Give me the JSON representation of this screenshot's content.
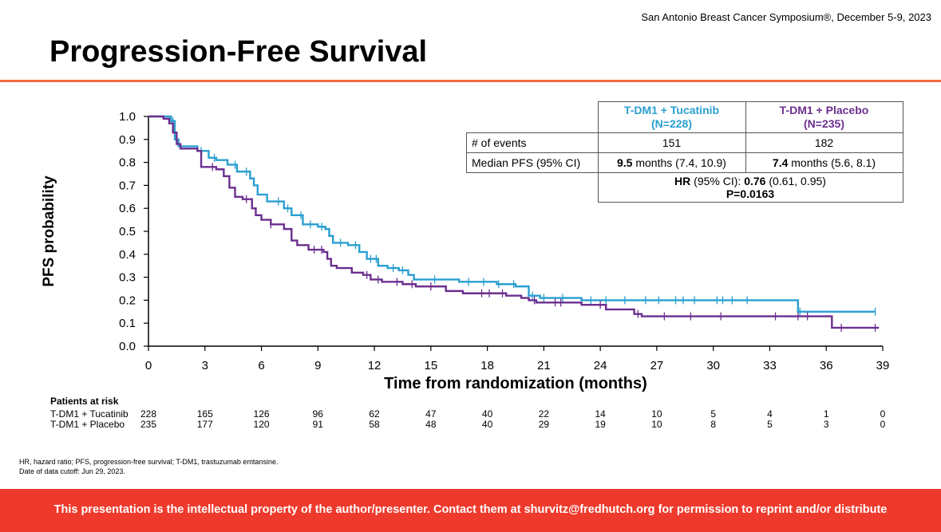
{
  "header": {
    "conference": "San Antonio Breast Cancer Symposium®, December 5-9, 2023",
    "title": "Progression-Free Survival"
  },
  "colors": {
    "accent": "#f26a3d",
    "tucatinib": "#2a9fd0",
    "placebo": "#6b2f8f",
    "banner": "#ee3a2c"
  },
  "chart_data": {
    "type": "line",
    "title": "Progression-Free Survival",
    "xlabel": "Time from randomization (months)",
    "ylabel": "PFS probability",
    "xlim": [
      0,
      39
    ],
    "ylim": [
      0,
      1.0
    ],
    "xticks": [
      "0",
      "3",
      "6",
      "9",
      "12",
      "15",
      "18",
      "21",
      "24",
      "27",
      "30",
      "33",
      "36",
      "39"
    ],
    "yticks": [
      "0.0",
      "0.1",
      "0.2",
      "0.3",
      "0.4",
      "0.5",
      "0.6",
      "0.7",
      "0.8",
      "0.9",
      "1.0"
    ],
    "series": [
      {
        "name": "T-DM1 + Tucatinib",
        "color": "#2a9fd0",
        "steps": [
          [
            0,
            1.0
          ],
          [
            1.2,
            0.98
          ],
          [
            1.4,
            0.9
          ],
          [
            1.6,
            0.87
          ],
          [
            2.6,
            0.85
          ],
          [
            3.2,
            0.82
          ],
          [
            3.6,
            0.81
          ],
          [
            4.2,
            0.79
          ],
          [
            4.7,
            0.76
          ],
          [
            5.4,
            0.73
          ],
          [
            5.6,
            0.7
          ],
          [
            5.8,
            0.66
          ],
          [
            6.3,
            0.63
          ],
          [
            7.2,
            0.6
          ],
          [
            7.6,
            0.57
          ],
          [
            8.2,
            0.53
          ],
          [
            9.0,
            0.52
          ],
          [
            9.4,
            0.51
          ],
          [
            9.6,
            0.48
          ],
          [
            9.8,
            0.45
          ],
          [
            10.6,
            0.44
          ],
          [
            11.2,
            0.41
          ],
          [
            11.6,
            0.38
          ],
          [
            12.2,
            0.35
          ],
          [
            12.7,
            0.34
          ],
          [
            13.3,
            0.33
          ],
          [
            13.8,
            0.31
          ],
          [
            14.1,
            0.29
          ],
          [
            16.5,
            0.28
          ],
          [
            18.5,
            0.27
          ],
          [
            19.5,
            0.26
          ],
          [
            20.2,
            0.22
          ],
          [
            20.8,
            0.21
          ],
          [
            23.0,
            0.2
          ],
          [
            34.5,
            0.15
          ],
          [
            38.6,
            0.15
          ]
        ],
        "censor_x": [
          1.3,
          1.5,
          2.8,
          3.5,
          4.6,
          5.2,
          6.9,
          7.4,
          8.1,
          8.6,
          9.2,
          10.2,
          11.0,
          11.8,
          12.1,
          13.0,
          13.5,
          15.2,
          17.0,
          17.8,
          18.6,
          19.4,
          20.4,
          21.0,
          22.0,
          23.5,
          24.3,
          25.3,
          26.4,
          27.1,
          28.0,
          28.4,
          29.0,
          30.2,
          30.5,
          31.0,
          31.8,
          34.6,
          38.6
        ]
      },
      {
        "name": "T-DM1 + Placebo",
        "color": "#6b2f8f",
        "steps": [
          [
            0,
            1.0
          ],
          [
            0.8,
            0.99
          ],
          [
            1.1,
            0.97
          ],
          [
            1.3,
            0.93
          ],
          [
            1.5,
            0.88
          ],
          [
            1.7,
            0.86
          ],
          [
            2.6,
            0.85
          ],
          [
            2.8,
            0.78
          ],
          [
            3.6,
            0.77
          ],
          [
            4.0,
            0.74
          ],
          [
            4.3,
            0.69
          ],
          [
            4.6,
            0.65
          ],
          [
            5.0,
            0.64
          ],
          [
            5.5,
            0.6
          ],
          [
            5.7,
            0.57
          ],
          [
            6.0,
            0.55
          ],
          [
            6.5,
            0.53
          ],
          [
            7.2,
            0.51
          ],
          [
            7.6,
            0.46
          ],
          [
            7.9,
            0.44
          ],
          [
            8.5,
            0.42
          ],
          [
            9.3,
            0.41
          ],
          [
            9.5,
            0.38
          ],
          [
            9.7,
            0.35
          ],
          [
            10.0,
            0.34
          ],
          [
            10.8,
            0.32
          ],
          [
            11.4,
            0.31
          ],
          [
            11.8,
            0.29
          ],
          [
            12.4,
            0.28
          ],
          [
            13.5,
            0.27
          ],
          [
            14.2,
            0.26
          ],
          [
            15.8,
            0.24
          ],
          [
            16.7,
            0.23
          ],
          [
            19.0,
            0.22
          ],
          [
            19.8,
            0.21
          ],
          [
            20.2,
            0.2
          ],
          [
            20.6,
            0.19
          ],
          [
            23.0,
            0.18
          ],
          [
            24.3,
            0.16
          ],
          [
            25.8,
            0.14
          ],
          [
            26.2,
            0.13
          ],
          [
            36.3,
            0.08
          ],
          [
            38.8,
            0.08
          ]
        ],
        "censor_x": [
          3.4,
          5.2,
          6.5,
          8.8,
          9.2,
          11.6,
          12.2,
          13.2,
          14.0,
          15.0,
          17.7,
          18.1,
          18.8,
          20.5,
          21.6,
          21.9,
          24.0,
          26.0,
          27.4,
          28.8,
          30.4,
          33.3,
          34.5,
          35.0,
          36.8,
          38.6
        ]
      }
    ]
  },
  "stats_table": {
    "col1_name": "T-DM1 + Tucatinib",
    "col1_n": "(N=228)",
    "col2_name": "T-DM1 + Placebo",
    "col2_n": "(N=235)",
    "events_label": "# of events",
    "events_1": "151",
    "events_2": "182",
    "median_label": "Median PFS (95% CI)",
    "median_1_value": "9.5",
    "median_1_rest": " months (7.4, 10.9)",
    "median_2_value": "7.4",
    "median_2_rest": " months (5.6, 8.1)",
    "hr_label": "HR",
    "hr_mid": " (95% CI): ",
    "hr_value": "0.76",
    "hr_ci": " (0.61, 0.95)",
    "p_value": "P=0.0163"
  },
  "risk": {
    "title": "Patients at risk",
    "rows": [
      {
        "label": "T-DM1 + Tucatinib",
        "values": [
          "228",
          "165",
          "126",
          "96",
          "62",
          "47",
          "40",
          "22",
          "14",
          "10",
          "5",
          "4",
          "1",
          "0"
        ]
      },
      {
        "label": "T-DM1 + Placebo",
        "values": [
          "235",
          "177",
          "120",
          "91",
          "58",
          "48",
          "40",
          "29",
          "19",
          "10",
          "8",
          "5",
          "3",
          "0"
        ]
      }
    ]
  },
  "footnotes": {
    "abbrev": "HR, hazard ratio; PFS, progression-free survival; T-DM1, trastuzumab emtansine.",
    "cutoff": "Date of data cutoff: Jun 29, 2023."
  },
  "banner": {
    "text": "This presentation is the intellectual property of the author/presenter. Contact them at shurvitz@fredhutch.org for permission to reprint and/or distribute"
  }
}
